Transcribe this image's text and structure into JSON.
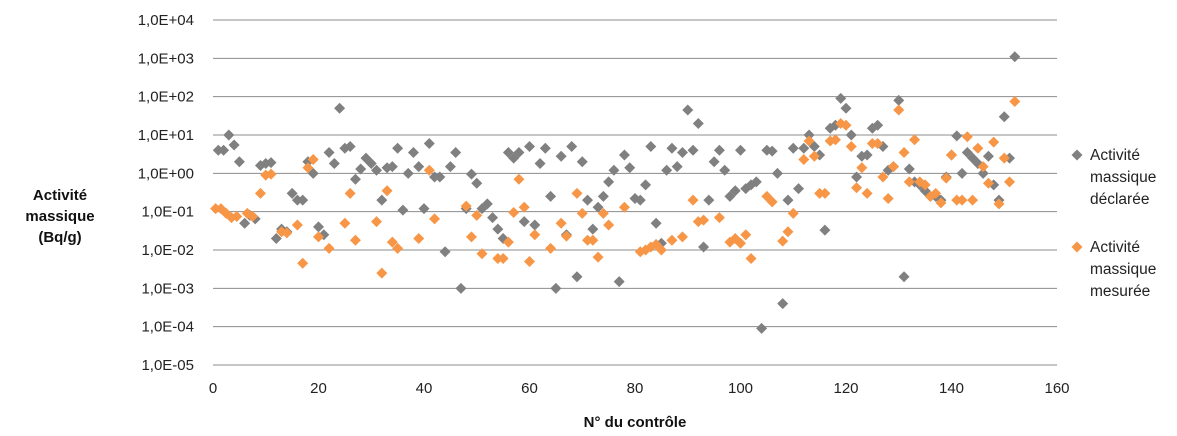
{
  "chart_data": {
    "type": "scatter",
    "title": "",
    "xlabel": "N° du contrôle",
    "ylabel_lines": [
      "Activité",
      "massique",
      "(Bq/g)"
    ],
    "x_ticks": [
      "0",
      "20",
      "40",
      "60",
      "80",
      "100",
      "120",
      "140",
      "160"
    ],
    "y_ticks": [
      "1,0E-05",
      "1,0E-04",
      "1,0E-03",
      "1,0E-02",
      "1,0E-01",
      "1,0E+00",
      "1,0E+01",
      "1,0E+02",
      "1,0E+03",
      "1,0E+04"
    ],
    "xlim": [
      0,
      160
    ],
    "ylim": [
      1e-05,
      10000
    ],
    "yscale": "log",
    "grid": "horizontal",
    "legend_position": "right",
    "series": [
      {
        "name": "Activité massique déclarée",
        "legend_lines": [
          "Activité",
          "massique",
          "déclarée"
        ],
        "color": "#808080",
        "points": [
          [
            1,
            4
          ],
          [
            2,
            4
          ],
          [
            3,
            10
          ],
          [
            4,
            5.5
          ],
          [
            5,
            2
          ],
          [
            6,
            0.05
          ],
          [
            7,
            0.08
          ],
          [
            8,
            0.065
          ],
          [
            9,
            1.6
          ],
          [
            10,
            1.8
          ],
          [
            11,
            1.9
          ],
          [
            12,
            0.02
          ],
          [
            13,
            0.035
          ],
          [
            14,
            0.03
          ],
          [
            15,
            0.3
          ],
          [
            16,
            0.2
          ],
          [
            17,
            0.2
          ],
          [
            18,
            2
          ],
          [
            19,
            1
          ],
          [
            20,
            0.04
          ],
          [
            21,
            0.025
          ],
          [
            22,
            3.5
          ],
          [
            23,
            1.8
          ],
          [
            24,
            50
          ],
          [
            25,
            4.5
          ],
          [
            26,
            5
          ],
          [
            27,
            0.7
          ],
          [
            28,
            1.3
          ],
          [
            29,
            2.5
          ],
          [
            30,
            1.8
          ],
          [
            31,
            1.2
          ],
          [
            32,
            0.2
          ],
          [
            33,
            1.4
          ],
          [
            34,
            1.5
          ],
          [
            35,
            4.5
          ],
          [
            36,
            0.11
          ],
          [
            37,
            1
          ],
          [
            38,
            3.5
          ],
          [
            39,
            1.5
          ],
          [
            40,
            0.12
          ],
          [
            41,
            6
          ],
          [
            42,
            0.8
          ],
          [
            43,
            0.8
          ],
          [
            44,
            0.009
          ],
          [
            45,
            1.5
          ],
          [
            46,
            3.5
          ],
          [
            47,
            0.001
          ],
          [
            48,
            0.12
          ],
          [
            49,
            0.95
          ],
          [
            50,
            0.55
          ],
          [
            51,
            0.12
          ],
          [
            52,
            0.16
          ],
          [
            53,
            0.07
          ],
          [
            54,
            0.035
          ],
          [
            55,
            0.02
          ],
          [
            56,
            3.5
          ],
          [
            57,
            2.5
          ],
          [
            58,
            3.5
          ],
          [
            59,
            0.055
          ],
          [
            60,
            5
          ],
          [
            61,
            0.045
          ],
          [
            62,
            1.8
          ],
          [
            63,
            4.5
          ],
          [
            64,
            0.25
          ],
          [
            65,
            0.001
          ],
          [
            66,
            2.8
          ],
          [
            67,
            0.025
          ],
          [
            68,
            5
          ],
          [
            69,
            0.002
          ],
          [
            70,
            2
          ],
          [
            71,
            0.2
          ],
          [
            72,
            0.035
          ],
          [
            73,
            0.13
          ],
          [
            74,
            0.25
          ],
          [
            75,
            0.6
          ],
          [
            76,
            1.2
          ],
          [
            77,
            0.0015
          ],
          [
            78,
            3
          ],
          [
            79,
            1.4
          ],
          [
            80,
            0.22
          ],
          [
            81,
            0.2
          ],
          [
            82,
            0.5
          ],
          [
            83,
            5
          ],
          [
            84,
            0.05
          ],
          [
            85,
            0.015
          ],
          [
            86,
            1.2
          ],
          [
            87,
            4.5
          ],
          [
            88,
            1.5
          ],
          [
            89,
            3.5
          ],
          [
            90,
            45
          ],
          [
            91,
            4
          ],
          [
            92,
            20
          ],
          [
            93,
            0.012
          ],
          [
            94,
            0.2
          ],
          [
            95,
            2
          ],
          [
            96,
            4
          ],
          [
            97,
            1.2
          ],
          [
            98,
            0.25
          ],
          [
            99,
            0.35
          ],
          [
            100,
            4
          ],
          [
            101,
            0.4
          ],
          [
            102,
            0.5
          ],
          [
            103,
            0.6
          ],
          [
            104,
            9e-05
          ],
          [
            105,
            4
          ],
          [
            106,
            3.8
          ],
          [
            107,
            1
          ],
          [
            108,
            0.0004
          ],
          [
            109,
            0.2
          ],
          [
            110,
            4.5
          ],
          [
            111,
            0.4
          ],
          [
            112,
            4.5
          ],
          [
            113,
            10
          ],
          [
            114,
            5
          ],
          [
            115,
            3
          ],
          [
            116,
            0.033
          ],
          [
            117,
            15
          ],
          [
            118,
            18
          ],
          [
            119,
            90
          ],
          [
            120,
            50
          ],
          [
            121,
            10
          ],
          [
            122,
            0.8
          ],
          [
            123,
            2.8
          ],
          [
            124,
            3
          ],
          [
            125,
            15
          ],
          [
            126,
            18
          ],
          [
            127,
            5
          ],
          [
            128,
            1.2
          ],
          [
            129,
            1.5
          ],
          [
            130,
            80
          ],
          [
            131,
            0.002
          ],
          [
            132,
            1.3
          ],
          [
            133,
            0.6
          ],
          [
            134,
            0.5
          ],
          [
            135,
            0.35
          ],
          [
            136,
            0.25
          ],
          [
            137,
            0.25
          ],
          [
            138,
            0.2
          ],
          [
            139,
            0.8
          ],
          [
            140,
            3
          ],
          [
            141,
            9.5
          ],
          [
            142,
            1
          ],
          [
            143,
            3.5
          ],
          [
            144,
            2.5
          ],
          [
            145,
            1.8
          ],
          [
            146,
            1
          ],
          [
            147,
            2.8
          ],
          [
            148,
            0.5
          ],
          [
            149,
            0.2
          ],
          [
            150,
            30
          ],
          [
            151,
            2.5
          ],
          [
            152,
            1100
          ]
        ]
      },
      {
        "name": "Activité massique mesurée",
        "legend_lines": [
          "Activité",
          "massique",
          "mesurée"
        ],
        "color": "#f79646",
        "points": [
          [
            0.5,
            0.12
          ],
          [
            1.5,
            0.12
          ],
          [
            2.5,
            0.09
          ],
          [
            3.5,
            0.07
          ],
          [
            4.5,
            0.075
          ],
          [
            6.5,
            0.09
          ],
          [
            7.5,
            0.075
          ],
          [
            9,
            0.3
          ],
          [
            10,
            0.9
          ],
          [
            11,
            0.95
          ],
          [
            13,
            0.03
          ],
          [
            14,
            0.028
          ],
          [
            16,
            0.045
          ],
          [
            17,
            0.0045
          ],
          [
            18,
            1.4
          ],
          [
            19,
            2.3
          ],
          [
            20,
            0.022
          ],
          [
            22,
            0.011
          ],
          [
            25,
            0.05
          ],
          [
            26,
            0.3
          ],
          [
            27,
            0.018
          ],
          [
            31,
            0.055
          ],
          [
            32,
            0.0025
          ],
          [
            33,
            0.35
          ],
          [
            34,
            0.016
          ],
          [
            35,
            0.011
          ],
          [
            39,
            0.02
          ],
          [
            41,
            1.2
          ],
          [
            42,
            0.065
          ],
          [
            48,
            0.14
          ],
          [
            49,
            0.022
          ],
          [
            50,
            0.08
          ],
          [
            51,
            0.008
          ],
          [
            54,
            0.006
          ],
          [
            55,
            0.006
          ],
          [
            56,
            0.016
          ],
          [
            57,
            0.095
          ],
          [
            58,
            0.7
          ],
          [
            59,
            0.13
          ],
          [
            60,
            0.005
          ],
          [
            61,
            0.025
          ],
          [
            64,
            0.011
          ],
          [
            66,
            0.05
          ],
          [
            67,
            0.023
          ],
          [
            69,
            0.3
          ],
          [
            70,
            0.09
          ],
          [
            71,
            0.018
          ],
          [
            72,
            0.018
          ],
          [
            73,
            0.0065
          ],
          [
            74,
            0.09
          ],
          [
            75,
            0.045
          ],
          [
            78,
            0.13
          ],
          [
            81,
            0.009
          ],
          [
            82,
            0.01
          ],
          [
            83,
            0.012
          ],
          [
            84,
            0.014
          ],
          [
            85,
            0.01
          ],
          [
            87,
            0.018
          ],
          [
            89,
            0.022
          ],
          [
            91,
            0.2
          ],
          [
            92,
            0.055
          ],
          [
            93,
            0.06
          ],
          [
            96,
            0.07
          ],
          [
            98,
            0.016
          ],
          [
            99,
            0.02
          ],
          [
            100,
            0.015
          ],
          [
            101,
            0.025
          ],
          [
            102,
            0.006
          ],
          [
            105,
            0.25
          ],
          [
            106,
            0.18
          ],
          [
            108,
            0.017
          ],
          [
            109,
            0.03
          ],
          [
            110,
            0.09
          ],
          [
            112,
            2.3
          ],
          [
            113,
            7
          ],
          [
            114,
            2.8
          ],
          [
            115,
            0.3
          ],
          [
            116,
            0.3
          ],
          [
            117,
            7
          ],
          [
            118,
            7.5
          ],
          [
            119,
            20
          ],
          [
            120,
            18
          ],
          [
            121,
            5
          ],
          [
            122,
            0.42
          ],
          [
            123,
            1.4
          ],
          [
            124,
            0.3
          ],
          [
            125,
            6
          ],
          [
            126,
            6
          ],
          [
            127,
            0.8
          ],
          [
            128,
            0.22
          ],
          [
            129,
            1.5
          ],
          [
            130,
            45
          ],
          [
            131,
            3.5
          ],
          [
            132,
            0.6
          ],
          [
            133,
            7.5
          ],
          [
            134,
            0.6
          ],
          [
            135,
            0.5
          ],
          [
            136,
            0.25
          ],
          [
            137,
            0.3
          ],
          [
            138,
            0.17
          ],
          [
            139,
            0.75
          ],
          [
            140,
            3
          ],
          [
            141,
            0.2
          ],
          [
            142,
            0.2
          ],
          [
            143,
            9
          ],
          [
            144,
            0.2
          ],
          [
            145,
            4.5
          ],
          [
            146,
            1.5
          ],
          [
            147,
            0.55
          ],
          [
            148,
            6.5
          ],
          [
            149,
            0.16
          ],
          [
            150,
            2.5
          ],
          [
            151,
            0.6
          ],
          [
            152,
            75
          ]
        ]
      }
    ]
  }
}
